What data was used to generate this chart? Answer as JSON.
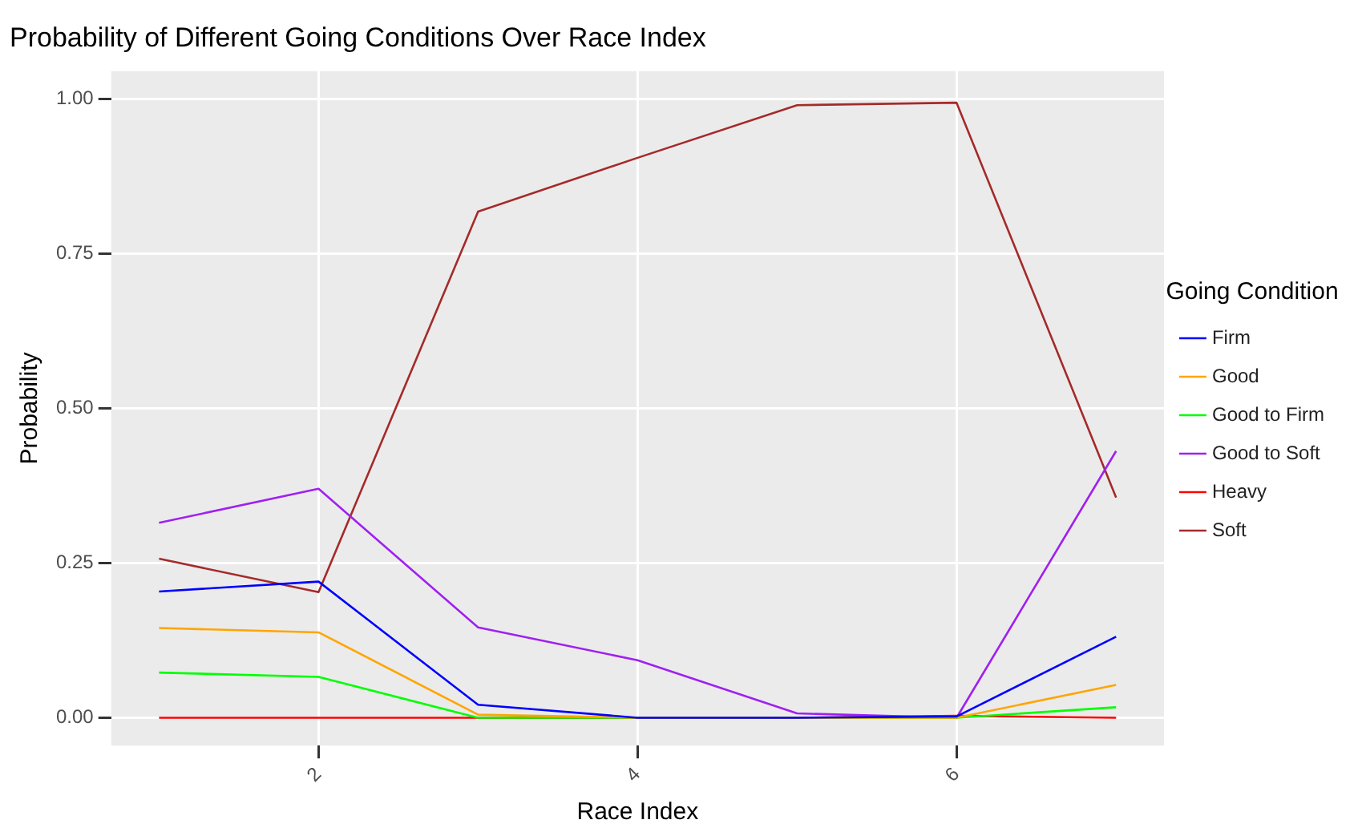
{
  "chart_data": {
    "type": "line",
    "title": "Probability of Different Going Conditions Over Race Index",
    "xlabel": "Race Index",
    "ylabel": "Probability",
    "legend_title": "Going Condition",
    "x": [
      1,
      2,
      3,
      4,
      5,
      6,
      7
    ],
    "series": [
      {
        "name": "Firm",
        "color": "#0000ff",
        "values": [
          0.204,
          0.22,
          0.021,
          0,
          0,
          0.002,
          0.131
        ]
      },
      {
        "name": "Good",
        "color": "#ffa500",
        "values": [
          0.145,
          0.138,
          0.005,
          0,
          0,
          0,
          0.053
        ]
      },
      {
        "name": "Good to Firm",
        "color": "#00ff00",
        "values": [
          0.073,
          0.066,
          0,
          0,
          0,
          0,
          0.017
        ]
      },
      {
        "name": "Good to Soft",
        "color": "#a020f0",
        "values": [
          0.315,
          0.37,
          0.146,
          0.093,
          0.007,
          0,
          0.431
        ]
      },
      {
        "name": "Heavy",
        "color": "#ff0000",
        "values": [
          0,
          0,
          0,
          0,
          0,
          0.003,
          0
        ]
      },
      {
        "name": "Soft",
        "color": "#a52a2a",
        "values": [
          0.257,
          0.203,
          0.818,
          0.905,
          0.99,
          0.994,
          0.356
        ]
      }
    ],
    "xlim": [
      0.7,
      7.3
    ],
    "xticks": [
      2,
      4,
      6
    ],
    "ylim": [
      -0.045,
      1.045
    ],
    "yticks": [
      {
        "value": 0,
        "label": "0.00"
      },
      {
        "value": 0.25,
        "label": "0.25"
      },
      {
        "value": 0.5,
        "label": "0.50"
      },
      {
        "value": 0.75,
        "label": "0.75"
      },
      {
        "value": 1,
        "label": "1.00"
      }
    ],
    "grid": true,
    "legend": "right",
    "marker": "none",
    "line_style": "solid"
  }
}
